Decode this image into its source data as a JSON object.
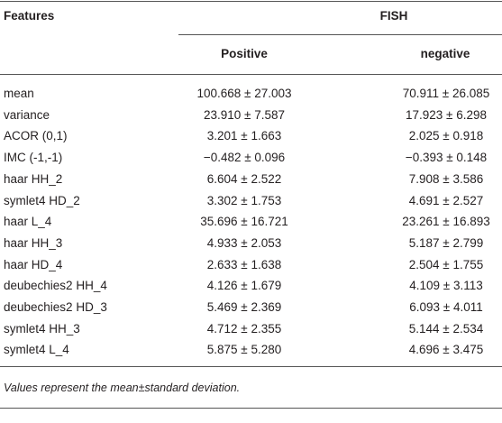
{
  "table": {
    "header": {
      "features": "Features",
      "group": "FISH",
      "columns": [
        "Positive",
        "negative"
      ]
    },
    "rows": [
      [
        "mean",
        "100.668 ± 27.003",
        "70.911 ± 26.085"
      ],
      [
        "variance",
        "23.910 ± 7.587",
        "17.923 ± 6.298"
      ],
      [
        "ACOR (0,1)",
        "3.201 ± 1.663",
        "2.025 ± 0.918"
      ],
      [
        "IMC (-1,-1)",
        "−0.482 ± 0.096",
        "−0.393 ± 0.148"
      ],
      [
        "haar HH_2",
        "6.604 ± 2.522",
        "7.908 ± 3.586"
      ],
      [
        "symlet4 HD_2",
        "3.302 ± 1.753",
        "4.691 ± 2.527"
      ],
      [
        "haar L_4",
        "35.696 ± 16.721",
        "23.261 ± 16.893"
      ],
      [
        "haar HH_3",
        "4.933 ± 2.053",
        "5.187 ± 2.799"
      ],
      [
        "haar HD_4",
        "2.633 ± 1.638",
        "2.504 ± 1.755"
      ],
      [
        "deubechies2 HH_4",
        "4.126 ± 1.679",
        "4.109 ± 3.113"
      ],
      [
        "deubechies2 HD_3",
        "5.469 ± 2.369",
        "6.093 ± 4.011"
      ],
      [
        "symlet4 HH_3",
        "4.712 ± 2.355",
        "5.144 ± 2.534"
      ],
      [
        "symlet4 L_4",
        "5.875 ± 5.280",
        "4.696 ± 3.475"
      ]
    ],
    "footnote": "Values represent the mean±standard deviation."
  }
}
